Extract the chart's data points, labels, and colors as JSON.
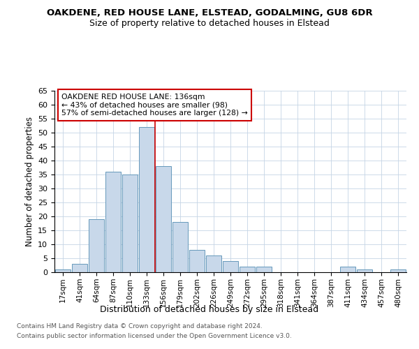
{
  "title1": "OAKDENE, RED HOUSE LANE, ELSTEAD, GODALMING, GU8 6DR",
  "title2": "Size of property relative to detached houses in Elstead",
  "xlabel": "Distribution of detached houses by size in Elstead",
  "ylabel": "Number of detached properties",
  "bar_labels": [
    "17sqm",
    "41sqm",
    "64sqm",
    "87sqm",
    "110sqm",
    "133sqm",
    "156sqm",
    "179sqm",
    "202sqm",
    "226sqm",
    "249sqm",
    "272sqm",
    "295sqm",
    "318sqm",
    "341sqm",
    "364sqm",
    "387sqm",
    "411sqm",
    "434sqm",
    "457sqm",
    "480sqm"
  ],
  "bar_values": [
    1,
    3,
    19,
    36,
    35,
    52,
    38,
    18,
    8,
    6,
    4,
    2,
    2,
    0,
    0,
    0,
    0,
    2,
    1,
    0,
    1
  ],
  "bar_color": "#c8d8ea",
  "bar_edge_color": "#6699bb",
  "ylim": [
    0,
    65
  ],
  "yticks": [
    0,
    5,
    10,
    15,
    20,
    25,
    30,
    35,
    40,
    45,
    50,
    55,
    60,
    65
  ],
  "vline_x": 5.5,
  "vline_color": "#cc0000",
  "ann_line1": "OAKDENE RED HOUSE LANE: 136sqm",
  "ann_line2": "← 43% of detached houses are smaller (98)",
  "ann_line3": "57% of semi-detached houses are larger (128) →",
  "footer1": "Contains HM Land Registry data © Crown copyright and database right 2024.",
  "footer2": "Contains public sector information licensed under the Open Government Licence v3.0.",
  "bg_color": "#ffffff",
  "plot_bg_color": "#ffffff",
  "grid_color": "#c5d5e5"
}
